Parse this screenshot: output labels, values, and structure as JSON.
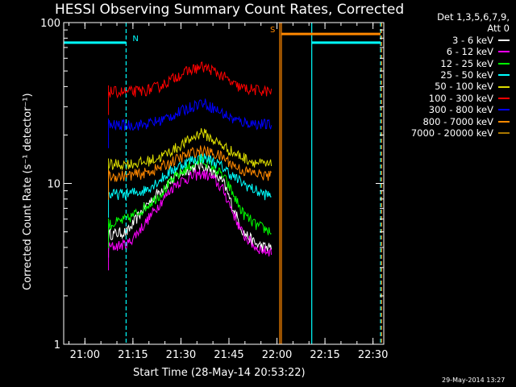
{
  "page_title": "HESSI Observing Summary Count Rates, Corrected",
  "x_axis_label": "Start Time (28-May-14 20:53:22)",
  "y_axis_label": "Corrected Count Rate (s⁻¹ detector⁻¹)",
  "timestamp": "29-May-2014 13:27",
  "legend_header": [
    "Det 1,3,5,6,7,9,",
    "Att 0"
  ],
  "chart_data": {
    "type": "line",
    "title": "HESSI Observing Summary Count Rates, Corrected",
    "xlabel": "Start Time (28-May-14 20:53:22)",
    "ylabel": "Corrected Count Rate (s⁻¹ detector⁻¹)",
    "x_unit": "minutes after 20:53:22",
    "xlim": [
      0,
      100
    ],
    "ylim": [
      1,
      100
    ],
    "y_scale": "log",
    "x_ticks": [
      "21:00",
      "21:15",
      "21:30",
      "21:45",
      "22:00",
      "22:15",
      "22:30"
    ],
    "x_tick_minutes": [
      6.63,
      21.63,
      36.63,
      51.63,
      66.63,
      81.63,
      96.63
    ],
    "y_ticks": [
      "1",
      "10",
      "100"
    ],
    "y_tick_values": [
      1,
      10,
      100
    ],
    "series": [
      {
        "name": "3 - 6 keV",
        "color": "#ffffff",
        "x": [
          14,
          20,
          25,
          30,
          35,
          40,
          43,
          46,
          50,
          53,
          56,
          60,
          63,
          65
        ],
        "y": [
          4.8,
          5,
          7,
          9,
          11,
          12.5,
          13,
          12,
          10,
          7,
          5,
          4.2,
          4,
          4
        ]
      },
      {
        "name": "6 - 12 keV",
        "color": "#ff00ff",
        "x": [
          14,
          20,
          25,
          30,
          35,
          40,
          43,
          46,
          50,
          53,
          56,
          60,
          63,
          65
        ],
        "y": [
          4,
          4.2,
          5.5,
          7.5,
          10,
          11,
          11.5,
          11,
          9,
          6.5,
          4.8,
          4,
          3.8,
          3.8
        ]
      },
      {
        "name": "12 - 25 keV",
        "color": "#00ff00",
        "x": [
          14,
          20,
          25,
          30,
          35,
          40,
          43,
          46,
          50,
          53,
          56,
          60,
          63,
          65
        ],
        "y": [
          5.5,
          6,
          7,
          8.5,
          11,
          13,
          14,
          13,
          11,
          8.5,
          6.5,
          5.5,
          5.2,
          5
        ]
      },
      {
        "name": "25 - 50 keV",
        "color": "#00ffff",
        "x": [
          14,
          20,
          25,
          30,
          35,
          40,
          43,
          46,
          50,
          53,
          56,
          60,
          63,
          65
        ],
        "y": [
          8.5,
          8.6,
          9,
          10.5,
          12.5,
          14,
          14.5,
          14,
          12.5,
          11,
          10,
          9,
          8.5,
          8.4
        ]
      },
      {
        "name": "50 - 100 keV",
        "color": "#dddd00",
        "x": [
          14,
          20,
          25,
          30,
          35,
          40,
          43,
          46,
          50,
          53,
          56,
          60,
          63,
          65
        ],
        "y": [
          13,
          13.2,
          13.5,
          14.5,
          16.5,
          19,
          21,
          19,
          17,
          15.5,
          14.5,
          13.5,
          13,
          13
        ]
      },
      {
        "name": "100 - 300 keV",
        "color": "#ff0000",
        "x": [
          14,
          20,
          25,
          30,
          35,
          40,
          43,
          46,
          50,
          53,
          56,
          60,
          63,
          65
        ],
        "y": [
          37,
          37,
          37.5,
          40,
          46,
          51,
          53,
          51,
          46,
          41,
          39,
          38,
          37.5,
          37
        ]
      },
      {
        "name": "300 - 800 keV",
        "color": "#0000ff",
        "x": [
          14,
          20,
          25,
          30,
          35,
          40,
          43,
          46,
          50,
          53,
          56,
          60,
          63,
          65
        ],
        "y": [
          23,
          23,
          23.2,
          24.5,
          27,
          30,
          32,
          30,
          27,
          25,
          24,
          23.5,
          23.2,
          23
        ]
      },
      {
        "name": "800 - 7000 keV",
        "color": "#ff8800",
        "x": [
          14,
          20,
          25,
          30,
          35,
          40,
          43,
          46,
          50,
          53,
          56,
          60,
          63,
          65
        ],
        "y": [
          11,
          11.2,
          11.5,
          12.5,
          14,
          15.5,
          16,
          15.5,
          14.5,
          13,
          12,
          11.5,
          11.2,
          11
        ]
      },
      {
        "name": "7000 - 20000 keV",
        "color": "#aa7700",
        "x": [],
        "y": []
      }
    ],
    "attenuator_flags": [
      {
        "label": "N",
        "color": "#00ffff",
        "x_range": [
          0,
          19.5
        ],
        "y": 75
      },
      {
        "label": "S",
        "color": "#ff8800",
        "x_range": [
          68,
          99
        ],
        "y": 85
      },
      {
        "label": "",
        "color": "#00ffff",
        "x_range": [
          77.5,
          99
        ],
        "y": 75
      }
    ],
    "vertical_markers": [
      {
        "x": 19.5,
        "color": "#00ffff",
        "style": "dashed"
      },
      {
        "x": 67.5,
        "color": "#ff8800",
        "style": "solid"
      },
      {
        "x": 68,
        "color": "#ff8800",
        "style": "solid"
      },
      {
        "x": 77.5,
        "color": "#00ffff",
        "style": "solid"
      },
      {
        "x": 99,
        "color": "#00ffff",
        "style": "dashed"
      },
      {
        "x": 99.3,
        "color": "#ff8800",
        "style": "dashed"
      }
    ],
    "legend_position": "top-right",
    "grid": false
  }
}
